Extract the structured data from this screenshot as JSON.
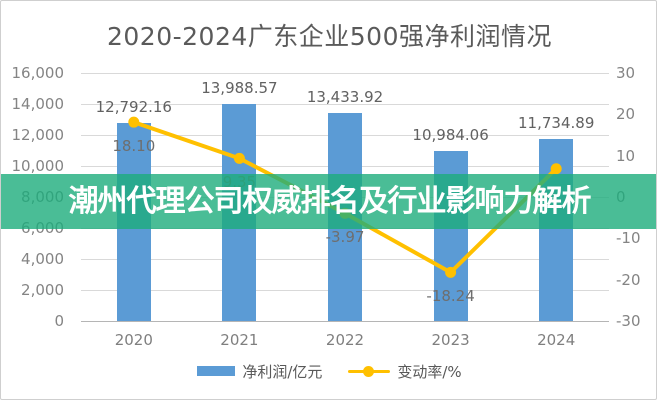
{
  "title": "2020-2024广东企业500强净利润情况",
  "overlay": {
    "text": "潮州代理公司权威排名及行业影响力解析",
    "background": "rgba(29,172,124,0.8)",
    "text_color": "#ffffff"
  },
  "legend": {
    "bar_label": "净利润/亿元",
    "line_label": "变动率/%"
  },
  "colors": {
    "bar": "#5B9BD5",
    "line": "#FFC000",
    "grid": "#d9d9d9",
    "axis_text": "#848484",
    "title_text": "#5a5a5a"
  },
  "chart_data": {
    "type": "bar",
    "subtype": "combo-bar-line-dual-axis",
    "title": "2020-2024广东企业500强净利润情况",
    "categories": [
      "2020",
      "2021",
      "2022",
      "2023",
      "2024"
    ],
    "series": [
      {
        "name": "净利润/亿元",
        "type": "bar",
        "axis": "left",
        "color": "#5B9BD5",
        "values": [
          12792.16,
          13988.57,
          13433.92,
          10984.06,
          11734.89
        ],
        "value_labels": [
          "12,792.16",
          "13,988.57",
          "13,433.92",
          "10,984.06",
          "11,734.89"
        ]
      },
      {
        "name": "变动率/%",
        "type": "line",
        "axis": "right",
        "color": "#FFC000",
        "values": [
          18.1,
          9.35,
          -3.97,
          -18.24,
          6.84
        ],
        "value_labels": [
          "18.10",
          "9.35",
          "-3.97",
          "-18.24",
          ""
        ]
      }
    ],
    "left_axis": {
      "min": 0,
      "max": 16000,
      "step": 2000,
      "tick_labels_top_to_bottom": [
        "16,000",
        "14,000",
        "12,000",
        "10,000",
        "8,000",
        "6,000",
        "4,000",
        "2,000",
        "0"
      ]
    },
    "right_axis": {
      "min": -30,
      "max": 30,
      "step": 10,
      "tick_labels_top_to_bottom": [
        "30",
        "20",
        "10",
        "0",
        "-10",
        "-20",
        "-30"
      ]
    },
    "grid": true,
    "legend_position": "bottom"
  }
}
